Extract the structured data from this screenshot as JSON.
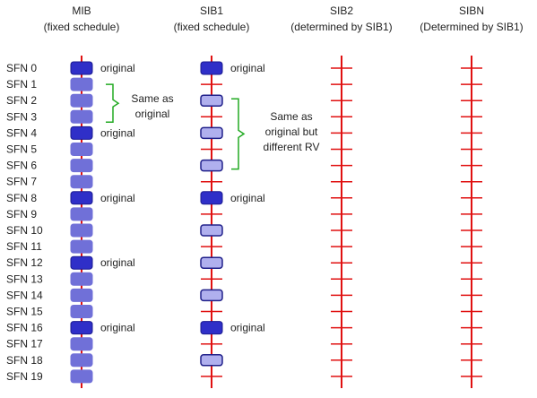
{
  "columns": [
    {
      "id": "mib",
      "title": "MIB",
      "subtitle": "(fixed schedule)"
    },
    {
      "id": "sib1",
      "title": "SIB1",
      "subtitle": "(fixed schedule)"
    },
    {
      "id": "sib2",
      "title": "SIB2",
      "subtitle": "(determined by SIB1)"
    },
    {
      "id": "sibn",
      "title": "SIBN",
      "subtitle": "(Determined by SIB1)"
    }
  ],
  "sfn_labels": [
    "SFN 0",
    "SFN 1",
    "SFN 2",
    "SFN 3",
    "SFN 4",
    "SFN 5",
    "SFN 6",
    "SFN 7",
    "SFN 8",
    "SFN 9",
    "SFN 10",
    "SFN 11",
    "SFN 12",
    "SFN 13",
    "SFN 14",
    "SFN 15",
    "SFN 16",
    "SFN 17",
    "SFN 18",
    "SFN 19"
  ],
  "mib_original_frames": [
    0,
    4,
    8,
    12,
    16
  ],
  "mib_repetition_frames": [
    1,
    2,
    3,
    5,
    6,
    7,
    9,
    10,
    11,
    13,
    14,
    15,
    17,
    18,
    19
  ],
  "sib1_original_frames": [
    0,
    8,
    16
  ],
  "sib1_repetition_frames": [
    2,
    4,
    6,
    10,
    12,
    14,
    18
  ],
  "original_label": "original",
  "mib_brace_note": [
    "Same as",
    "original"
  ],
  "sib1_brace_note": [
    "Same as",
    "original but",
    "different RV"
  ],
  "colors": {
    "line": "#e01010",
    "original_fill": "#2f2fc8",
    "original_stroke": "#1a1a90",
    "mib_rep_fill": "#7070d8",
    "sib1_rep_fill": "#b0b0ee",
    "sib1_rep_stroke": "#20208a",
    "brace": "#22aa22",
    "text": "#222222"
  }
}
